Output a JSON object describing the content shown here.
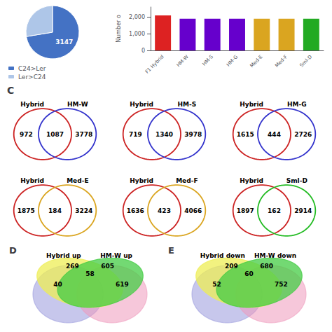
{
  "chart_data": [
    {
      "type": "pie",
      "categories": [
        "C24>Ler",
        "Ler>C24"
      ],
      "values": [
        3147,
        1200
      ],
      "colors": [
        "#4472c4",
        "#aec6e8"
      ],
      "annotations": [
        "3147"
      ],
      "legend": "lower left"
    },
    {
      "type": "bar",
      "ylabel": "Number o",
      "categories": [
        "F1 Hybrid",
        "HM-W",
        "HM-S",
        "HM-G",
        "Med-E",
        "Med-F",
        "Sml-D"
      ],
      "values": [
        2100,
        1900,
        1900,
        1900,
        1900,
        1900,
        1900
      ],
      "colors": [
        "#dd2222",
        "#6600cc",
        "#6600cc",
        "#6600cc",
        "#daa520",
        "#daa520",
        "#22aa22"
      ],
      "ylim": [
        0,
        2600
      ],
      "yticks": [
        0,
        1000,
        2000
      ],
      "grid": false
    },
    {
      "type": "venn",
      "title": "C",
      "series": [
        {
          "name": "Hybrid",
          "color": "#cc2222"
        },
        {
          "name": "HM-W",
          "color": "#3333cc"
        }
      ],
      "values": [
        972,
        1087,
        3778
      ]
    },
    {
      "type": "venn",
      "series": [
        {
          "name": "Hybrid",
          "color": "#cc2222"
        },
        {
          "name": "HM-S",
          "color": "#3333cc"
        }
      ],
      "values": [
        719,
        1340,
        3978
      ]
    },
    {
      "type": "venn",
      "series": [
        {
          "name": "Hybrid",
          "color": "#cc2222"
        },
        {
          "name": "HM-G",
          "color": "#3333cc"
        }
      ],
      "values": [
        1615,
        444,
        2726
      ]
    },
    {
      "type": "venn",
      "series": [
        {
          "name": "Hybrid",
          "color": "#cc2222"
        },
        {
          "name": "Med-E",
          "color": "#daa520"
        }
      ],
      "values": [
        1875,
        184,
        3224
      ]
    },
    {
      "type": "venn",
      "series": [
        {
          "name": "Hybrid",
          "color": "#cc2222"
        },
        {
          "name": "Med-F",
          "color": "#daa520"
        }
      ],
      "values": [
        1636,
        423,
        4066
      ]
    },
    {
      "type": "venn",
      "series": [
        {
          "name": "Hybrid",
          "color": "#cc2222"
        },
        {
          "name": "Sml-D",
          "color": "#22bb22"
        }
      ],
      "values": [
        1897,
        162,
        2914
      ]
    },
    {
      "type": "venn4",
      "title": "D",
      "series": [
        {
          "name": "Hybrid up",
          "color": "#eeee55"
        },
        {
          "name": "HM-W up",
          "color": "#44cc44"
        },
        {
          "color": "#9999dd"
        },
        {
          "color": "#ee99bb"
        }
      ],
      "values": [
        269,
        40,
        605,
        58,
        619
      ]
    },
    {
      "type": "venn4",
      "title": "E",
      "series": [
        {
          "name": "Hybrid down",
          "color": "#eeee55"
        },
        {
          "name": "HM-W down",
          "color": "#44cc44"
        },
        {
          "color": "#9999dd"
        },
        {
          "color": "#ee99bb"
        }
      ],
      "values": [
        209,
        52,
        680,
        60,
        752
      ]
    }
  ]
}
